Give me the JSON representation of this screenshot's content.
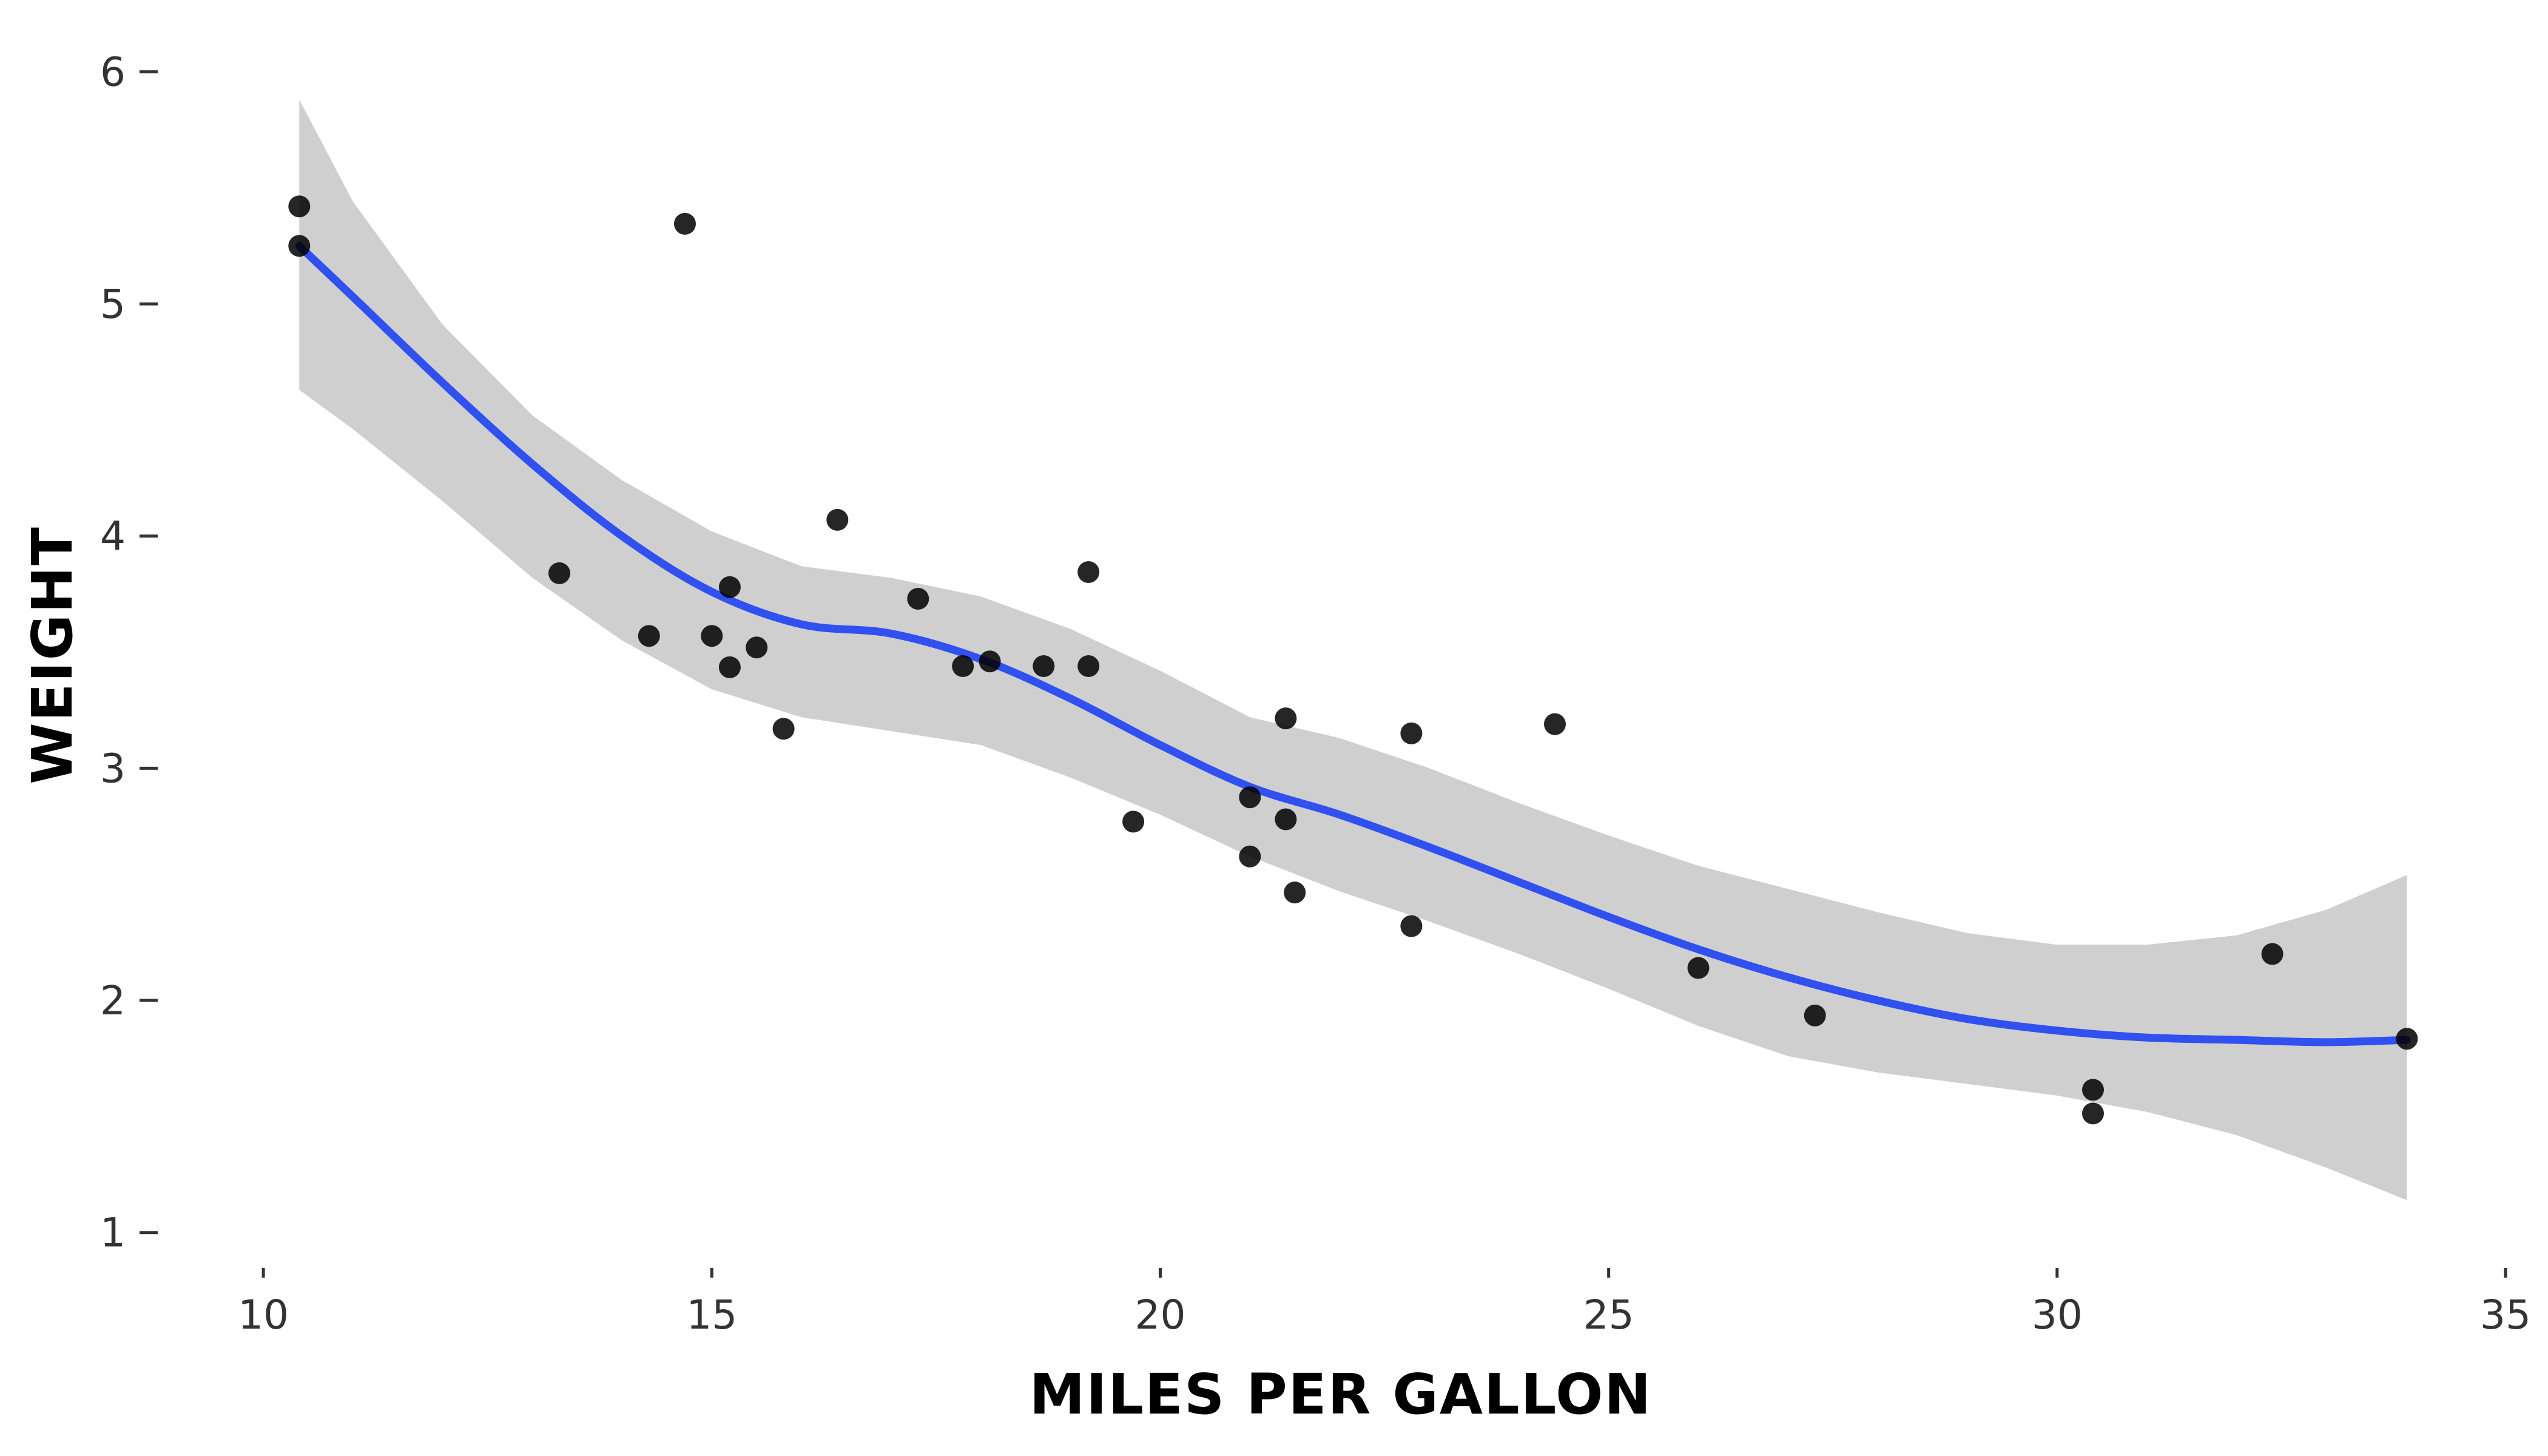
{
  "chart_data": {
    "type": "scatter",
    "title": "",
    "xlabel": "MILES PER GALLON",
    "ylabel": "WEIGHT",
    "xlim": [
      9.6,
      35
    ],
    "ylim": [
      0.9,
      6.1
    ],
    "xticks": [
      10,
      15,
      20,
      25,
      30,
      35
    ],
    "yticks": [
      1,
      2,
      3,
      4,
      5,
      6
    ],
    "xtick_labels": [
      "10",
      "15",
      "20",
      "25",
      "30",
      "35"
    ],
    "ytick_labels": [
      "1",
      "2",
      "3",
      "4",
      "5",
      "6"
    ],
    "grid": false,
    "colors": {
      "points": "#000000",
      "smooth_line": "#3050f0",
      "confidence_band": "#bfbfbf"
    },
    "points": [
      {
        "x": 10.4,
        "y": 5.42
      },
      {
        "x": 10.4,
        "y": 5.25
      },
      {
        "x": 13.3,
        "y": 3.84
      },
      {
        "x": 14.3,
        "y": 3.57
      },
      {
        "x": 14.7,
        "y": 5.345
      },
      {
        "x": 15.0,
        "y": 3.57
      },
      {
        "x": 15.2,
        "y": 3.78
      },
      {
        "x": 15.2,
        "y": 3.435
      },
      {
        "x": 15.5,
        "y": 3.52
      },
      {
        "x": 15.8,
        "y": 3.17
      },
      {
        "x": 16.4,
        "y": 4.07
      },
      {
        "x": 17.3,
        "y": 3.73
      },
      {
        "x": 17.8,
        "y": 3.44
      },
      {
        "x": 18.1,
        "y": 3.46
      },
      {
        "x": 18.7,
        "y": 3.44
      },
      {
        "x": 19.2,
        "y": 3.44
      },
      {
        "x": 19.2,
        "y": 3.845
      },
      {
        "x": 19.7,
        "y": 2.77
      },
      {
        "x": 21.0,
        "y": 2.62
      },
      {
        "x": 21.0,
        "y": 2.875
      },
      {
        "x": 21.4,
        "y": 3.215
      },
      {
        "x": 21.4,
        "y": 2.78
      },
      {
        "x": 21.5,
        "y": 2.465
      },
      {
        "x": 22.8,
        "y": 3.15
      },
      {
        "x": 22.8,
        "y": 2.32
      },
      {
        "x": 24.4,
        "y": 3.19
      },
      {
        "x": 26.0,
        "y": 2.14
      },
      {
        "x": 27.3,
        "y": 1.935
      },
      {
        "x": 30.4,
        "y": 1.615
      },
      {
        "x": 30.4,
        "y": 1.513
      },
      {
        "x": 32.4,
        "y": 2.2
      },
      {
        "x": 33.9,
        "y": 1.835
      }
    ],
    "series": [
      {
        "name": "smooth",
        "x": [
          10.4,
          11,
          12,
          13,
          14,
          15,
          16,
          17,
          18,
          19,
          20,
          21,
          22,
          23,
          24,
          25,
          26,
          27,
          28,
          29,
          30,
          31,
          32,
          33,
          33.9
        ],
        "y": [
          5.25,
          5.03,
          4.66,
          4.31,
          4.0,
          3.76,
          3.62,
          3.58,
          3.47,
          3.3,
          3.1,
          2.92,
          2.8,
          2.66,
          2.51,
          2.36,
          2.22,
          2.1,
          2.0,
          1.92,
          1.87,
          1.84,
          1.83,
          1.82,
          1.83
        ],
        "lower": [
          4.63,
          4.46,
          4.15,
          3.82,
          3.55,
          3.34,
          3.22,
          3.16,
          3.1,
          2.96,
          2.8,
          2.62,
          2.47,
          2.34,
          2.2,
          2.05,
          1.89,
          1.76,
          1.69,
          1.64,
          1.59,
          1.52,
          1.42,
          1.28,
          1.14
        ],
        "upper": [
          5.88,
          5.44,
          4.91,
          4.52,
          4.24,
          4.02,
          3.87,
          3.82,
          3.74,
          3.6,
          3.42,
          3.22,
          3.13,
          3.0,
          2.85,
          2.71,
          2.58,
          2.48,
          2.38,
          2.29,
          2.24,
          2.24,
          2.28,
          2.39,
          2.54
        ]
      }
    ]
  }
}
